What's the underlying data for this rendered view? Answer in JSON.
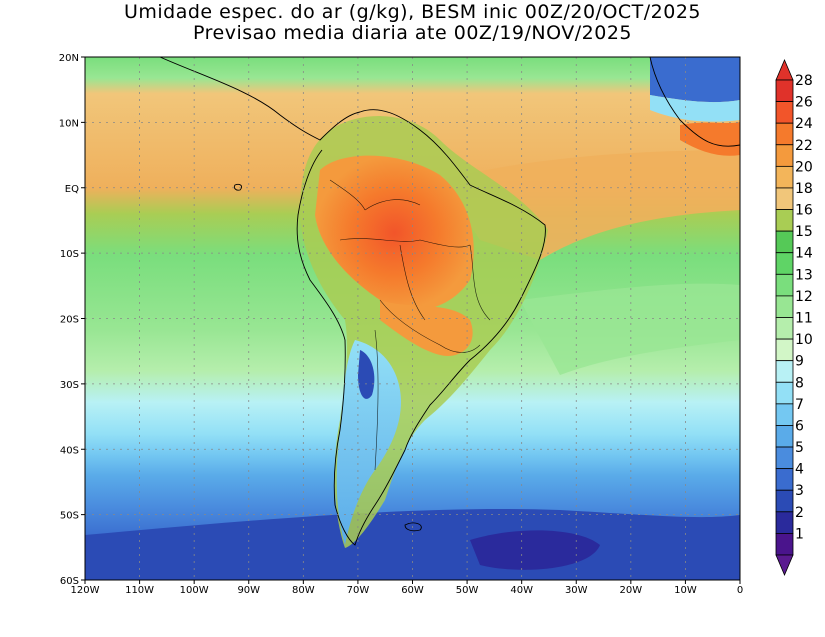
{
  "title": {
    "line1": "Umidade espec. do ar (g/kg), BESM inic 00Z/20/OCT/2025",
    "line2": "Previsao media diaria ate 00Z/19/NOV/2025"
  },
  "map": {
    "lon_range": [
      -120,
      0
    ],
    "lat_range": [
      -60,
      20
    ],
    "grid": "dotted",
    "x_ticks": [
      "120W",
      "110W",
      "100W",
      "90W",
      "80W",
      "70W",
      "60W",
      "50W",
      "40W",
      "30W",
      "20W",
      "10W",
      "0"
    ],
    "y_ticks": [
      "20N",
      "10N",
      "EQ",
      "10S",
      "20S",
      "30S",
      "40S",
      "50S",
      "60S"
    ]
  },
  "colorbar": {
    "labels": [
      "28",
      "26",
      "24",
      "22",
      "20",
      "18",
      "16",
      "15",
      "14",
      "13",
      "12",
      "11",
      "10",
      "9",
      "8",
      "7",
      "6",
      "5",
      "4",
      "3",
      "2",
      "1"
    ],
    "colors": [
      "#e0322a",
      "#f2552a",
      "#f57a2c",
      "#f49a3d",
      "#f3b55a",
      "#f1c67a",
      "#a9cd54",
      "#55c957",
      "#5fd466",
      "#7ade7d",
      "#98e693",
      "#b5eeac",
      "#d2f6c7",
      "#b8f1f5",
      "#93e0f6",
      "#74c8f2",
      "#5aabe9",
      "#4a8cde",
      "#3a6ccf",
      "#2b4bb5",
      "#2a2a9c",
      "#4a148c"
    ],
    "top_arrow_color": "#e0322a",
    "bottom_arrow_color": "#5a1a90"
  },
  "colors": {
    "ocean_tropical": "#efb05c",
    "ocean_green": "#7ade7d",
    "ocean_south": "#3a6ccf",
    "land_hot": "#f57a2c"
  }
}
